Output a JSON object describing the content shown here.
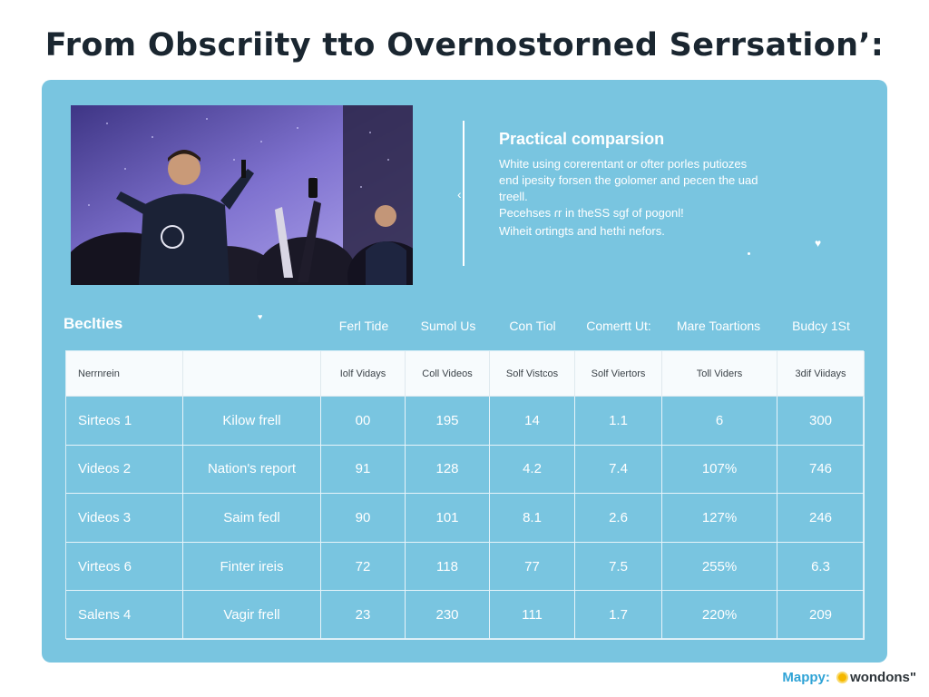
{
  "title": "From Obscriity tto Overnostorned Serrsation’:",
  "info": {
    "heading": "Practical comparsion",
    "lines": [
      "White using corerentant or ofter porles putiozes",
      "end ipesity forsen the golomer and pecen the uad",
      "treell.",
      "Pecehses ɾr in theSS sgf of pogonl!",
      "Wiheit ortingts and hethi nefors."
    ]
  },
  "section_label": "Beclties",
  "column_headers": [
    "Ferl Tide",
    "Sumol Us",
    "Con Tiol",
    "Comertt Ut:",
    "Mare Toartions",
    "Budcy 1St"
  ],
  "table": {
    "header_row": [
      "Nerrnrein",
      "",
      "Iolf Vidays",
      "Coll Videos",
      "Solf Vistcos",
      "Solf Viertors",
      "Toll Viders",
      "3dif Viidays"
    ],
    "rows": [
      [
        "Sirteos  1",
        "Kilow frell",
        "00",
        "195",
        "14",
        "1.1",
        "6",
        "300"
      ],
      [
        "Videos  2",
        "Nation's report",
        "91",
        "128",
        "4.2",
        "7.4",
        "107%",
        "746"
      ],
      [
        "Videos  3",
        "Saim fedl",
        "90",
        "101",
        "8.1",
        "2.6",
        "127%",
        "246"
      ],
      [
        "Virteos  6",
        "Finter ireis",
        "72",
        "118",
        "77",
        "7.5",
        "255%",
        "6.3"
      ],
      [
        "Salens  4",
        "Vagir frell",
        "23",
        "230",
        "111",
        "1.7",
        "220%",
        "209"
      ]
    ]
  },
  "footer": {
    "brand": "Mappy:",
    "product": "wondons\""
  },
  "colors": {
    "panel": "#79c5e0",
    "brand": "#2fa3d6",
    "coin": "#f5b800"
  },
  "icons": [
    "heart-icon",
    "coin-icon"
  ]
}
